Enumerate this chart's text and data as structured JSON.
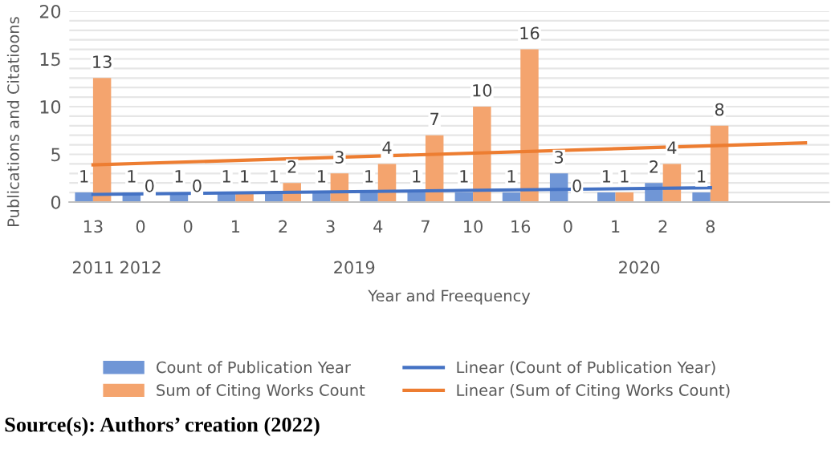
{
  "chart_data": {
    "type": "bar",
    "ylabel": "Publications and Citatioons",
    "xlabel": "Year and Freequency",
    "categories": [
      "13",
      "0",
      "0",
      "1",
      "2",
      "3",
      "4",
      "7",
      "10",
      "16",
      "0",
      "1",
      "2",
      "8",
      null,
      null
    ],
    "series": [
      {
        "name": "Count of Publication Year",
        "color": "#7096d6",
        "values": [
          1,
          1,
          1,
          1,
          1,
          1,
          1,
          1,
          1,
          1,
          3,
          1,
          2,
          1,
          null,
          null
        ],
        "value_labels": [
          "1",
          "1",
          "1",
          "1",
          "1",
          "1",
          "1",
          "1",
          "1",
          "1",
          "3",
          "1",
          "2",
          "1",
          null,
          null
        ]
      },
      {
        "name": "Sum of Citing Works Count",
        "color": "#f4a46e",
        "values": [
          13,
          0,
          0,
          1,
          2,
          3,
          4,
          7,
          10,
          16,
          0,
          1,
          4,
          8,
          null,
          null
        ],
        "value_labels": [
          "13",
          "0",
          "0",
          "1",
          "2",
          "3",
          "4",
          "7",
          "10",
          "16",
          "0",
          "1",
          "4",
          "8",
          null,
          null
        ]
      },
      {
        "name": "Linear (Count of Publication Year)",
        "type": "line",
        "color": "#4472c4",
        "values": [
          0.8,
          null,
          null,
          null,
          null,
          null,
          null,
          null,
          null,
          null,
          null,
          null,
          null,
          1.5,
          null,
          null
        ]
      },
      {
        "name": "Linear (Sum of Citing Works Count)",
        "type": "line",
        "color": "#ed7d31",
        "values": [
          3.9,
          null,
          null,
          null,
          null,
          null,
          null,
          null,
          null,
          null,
          null,
          null,
          null,
          null,
          null,
          6.2
        ]
      }
    ],
    "ylim": [
      0,
      20
    ],
    "yticks": [
      0,
      {
        "value": 1,
        "label": null
      },
      {
        "value": 2,
        "label": null
      },
      {
        "value": 3,
        "label": null
      },
      {
        "value": 4,
        "label": null
      },
      5,
      {
        "value": 6,
        "label": null
      },
      {
        "value": 7,
        "label": null
      },
      {
        "value": 8,
        "label": null
      },
      {
        "value": 9,
        "label": null
      },
      10,
      {
        "value": 11,
        "label": null
      },
      {
        "value": 12,
        "label": null
      },
      {
        "value": 13,
        "label": null
      },
      {
        "value": 14,
        "label": null
      },
      15,
      {
        "value": 16,
        "label": null
      },
      {
        "value": 17,
        "label": null
      },
      {
        "value": 18,
        "label": null
      },
      {
        "value": 19,
        "label": null
      },
      20
    ],
    "grid": "y",
    "legend": "bottom",
    "annotations": [
      "2011",
      "2012",
      "2019",
      "2020",
      "Source(s): Authors’ creation (2022)"
    ]
  }
}
